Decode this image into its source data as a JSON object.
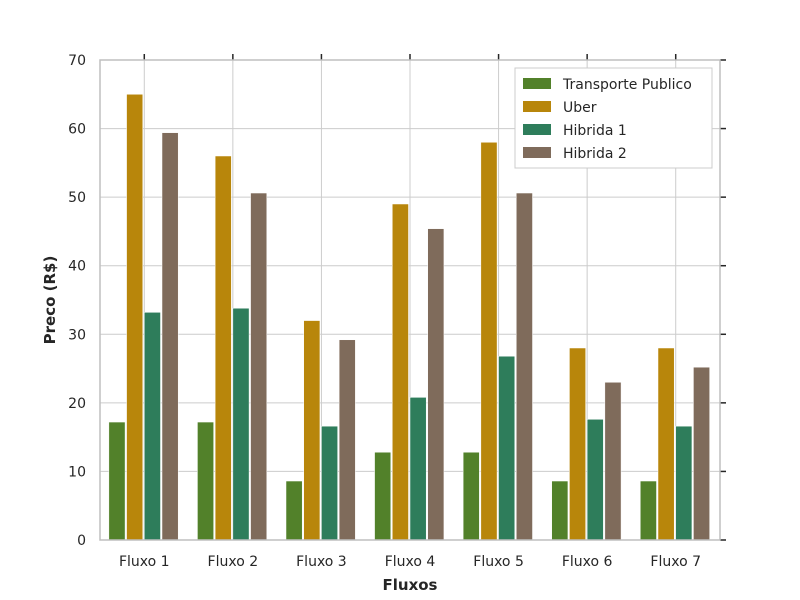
{
  "chart_data": {
    "type": "bar",
    "title": "",
    "xlabel": "Fluxos",
    "ylabel": "Preco (R$)",
    "ylim": [
      0,
      70
    ],
    "yticks": [
      0,
      10,
      20,
      30,
      40,
      50,
      60,
      70
    ],
    "grid": true,
    "legend_position": "top-right",
    "categories": [
      "Fluxo 1",
      "Fluxo 2",
      "Fluxo 3",
      "Fluxo 4",
      "Fluxo 5",
      "Fluxo 6",
      "Fluxo 7"
    ],
    "series": [
      {
        "name": "Transporte Publico",
        "color": "#52812a",
        "values": [
          17.2,
          17.2,
          8.6,
          12.8,
          12.8,
          8.6,
          8.6
        ]
      },
      {
        "name": "Uber",
        "color": "#b8860b",
        "values": [
          65.0,
          56.0,
          32.0,
          49.0,
          58.0,
          28.0,
          28.0
        ]
      },
      {
        "name": "Hibrida 1",
        "color": "#2e7d5b",
        "values": [
          33.2,
          33.8,
          16.6,
          20.8,
          26.8,
          17.6,
          16.6
        ]
      },
      {
        "name": "Hibrida 2",
        "color": "#7f6b5b",
        "values": [
          59.4,
          50.6,
          29.2,
          45.4,
          50.6,
          23.0,
          25.2
        ]
      }
    ]
  }
}
